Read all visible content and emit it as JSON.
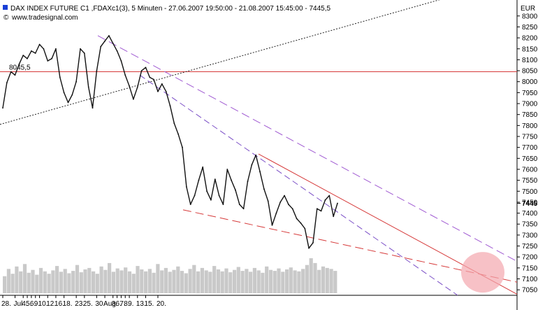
{
  "chart_data": {
    "type": "line",
    "title": "DAX INDEX FUTURE C1 ,FDAXc1(3), 5 Minuten - 27.06.2007 19:50:00 - 21.08.2007 15:45:00 - 7445,5",
    "source": "www.tradesignal.com",
    "currency": "EUR",
    "ylim": [
      7025,
      8360
    ],
    "yticks": [
      "8300",
      "8250",
      "8200",
      "8150",
      "8100",
      "8050",
      "8000",
      "7950",
      "7900",
      "7850",
      "7800",
      "7750",
      "7700",
      "7650",
      "7600",
      "7550",
      "7500",
      "7450",
      "7400",
      "7350",
      "7300",
      "7250",
      "7200",
      "7150",
      "7100",
      "7050"
    ],
    "last_value_label": "7445",
    "hline_label": "8045,5",
    "hline_value": 8045.5,
    "x_ticks": [
      {
        "label": "28.",
        "i": 0
      },
      {
        "label": "Jul",
        "i": 3
      },
      {
        "label": "4.",
        "i": 5
      },
      {
        "label": "5.",
        "i": 6
      },
      {
        "label": "6.",
        "i": 7
      },
      {
        "label": "9.",
        "i": 8
      },
      {
        "label": "10.",
        "i": 9
      },
      {
        "label": "12.",
        "i": 11
      },
      {
        "label": "16.",
        "i": 13
      },
      {
        "label": "18.",
        "i": 15
      },
      {
        "label": "23.",
        "i": 18
      },
      {
        "label": "25.",
        "i": 20
      },
      {
        "label": "30.",
        "i": 23
      },
      {
        "label": "Aug",
        "i": 25
      },
      {
        "label": "3.",
        "i": 27
      },
      {
        "label": "6.",
        "i": 28
      },
      {
        "label": "7.",
        "i": 29
      },
      {
        "label": "8.",
        "i": 30
      },
      {
        "label": "9.",
        "i": 31
      },
      {
        "label": "13.",
        "i": 33
      },
      {
        "label": "15.",
        "i": 35
      },
      {
        "label": "20.",
        "i": 38
      }
    ],
    "series": [
      {
        "values": [
          7880,
          7995,
          8045,
          8030,
          8080,
          8120,
          8105,
          8140,
          8130,
          8170,
          8150,
          8095,
          8105,
          8150,
          8020,
          7950,
          7905,
          7940,
          8000,
          8150,
          8130,
          7975,
          7880,
          8050,
          8160,
          8185,
          8210,
          8175,
          8140,
          8095,
          8030,
          7980,
          7920,
          7975,
          8050,
          8065,
          8020,
          8010,
          7955,
          7990,
          7955,
          7890,
          7810,
          7760,
          7700,
          7520,
          7440,
          7480,
          7550,
          7610,
          7500,
          7460,
          7555,
          7480,
          7440,
          7600,
          7550,
          7505,
          7440,
          7420,
          7545,
          7620,
          7665,
          7590,
          7510,
          7455,
          7345,
          7400,
          7450,
          7480,
          7440,
          7420,
          7375,
          7355,
          7330,
          7240,
          7265,
          7420,
          7410,
          7460,
          7480,
          7385,
          7445
        ]
      }
    ],
    "volume": [
      35,
      50,
      40,
      55,
      45,
      60,
      42,
      48,
      38,
      52,
      45,
      40,
      47,
      56,
      44,
      50,
      41,
      46,
      58,
      43,
      49,
      52,
      45,
      40,
      55,
      48,
      62,
      44,
      51,
      47,
      53,
      45,
      40,
      56,
      49,
      45,
      50,
      42,
      60,
      47,
      52,
      44,
      48,
      55,
      46,
      41,
      50,
      58,
      45,
      52,
      47,
      44,
      56,
      49,
      45,
      51,
      43,
      48,
      54,
      46,
      50,
      44,
      52,
      47,
      42,
      55,
      48,
      46,
      51,
      44,
      49,
      53,
      47,
      45,
      50,
      58,
      72,
      62,
      48,
      55,
      52,
      50,
      46
    ]
  }
}
